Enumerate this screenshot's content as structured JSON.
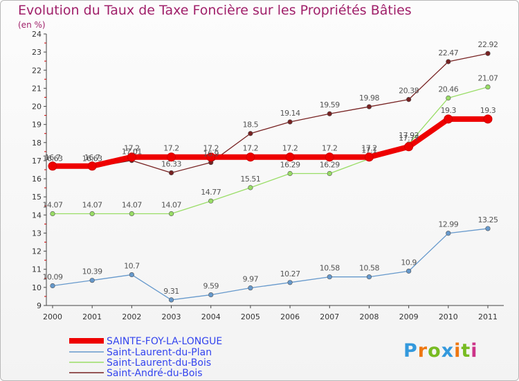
{
  "chart_data": {
    "type": "line",
    "title": "Evolution du Taux de Taxe Foncière sur les Propriétés Bâties",
    "subtitle": "(en %)",
    "xlabel": "",
    "ylabel": "(en %)",
    "ylim": [
      9,
      24
    ],
    "yticks": [
      9,
      10,
      11,
      12,
      13,
      14,
      15,
      16,
      17,
      18,
      19,
      20,
      21,
      22,
      23,
      24
    ],
    "categories": [
      "2000",
      "2001",
      "2002",
      "2003",
      "2004",
      "2005",
      "2006",
      "2007",
      "2008",
      "2009",
      "2010",
      "2011"
    ],
    "grid": false,
    "legend": "bottom-left",
    "series": [
      {
        "name": "SAINTE-FOY-LA-LONGUE",
        "color": "#ee0000",
        "values": [
          16.7,
          16.7,
          17.2,
          17.2,
          17.2,
          17.2,
          17.2,
          17.2,
          17.2,
          17.77,
          19.3,
          19.3
        ],
        "labels": [
          "16.7",
          "16.7",
          "17.2",
          "17.2",
          "17.2",
          "17.2",
          "17.2",
          "17.2",
          "17.2",
          "17.77",
          "19.3",
          "19.3"
        ]
      },
      {
        "name": "Saint-Laurent-du-Plan",
        "color": "#6699cc",
        "values": [
          10.09,
          10.39,
          10.7,
          9.31,
          9.59,
          9.97,
          10.27,
          10.58,
          10.58,
          10.9,
          12.99,
          13.25
        ],
        "labels": [
          "10.09",
          "10.39",
          "10.7",
          "9.31",
          "9.59",
          "9.97",
          "10.27",
          "10.58",
          "10.58",
          "10.9",
          "12.99",
          "13.25"
        ]
      },
      {
        "name": "Saint-Laurent-du-Bois",
        "color": "#99dd66",
        "values": [
          14.07,
          14.07,
          14.07,
          14.07,
          14.77,
          15.51,
          16.29,
          16.29,
          17.1,
          17.92,
          20.46,
          21.07
        ],
        "labels": [
          "14.07",
          "14.07",
          "14.07",
          "14.07",
          "14.77",
          "15.51",
          "16.29",
          "16.29",
          "17.1",
          "17.92",
          "20.46",
          "21.07"
        ]
      },
      {
        "name": "Saint-André-du-Bois",
        "color": "#772222",
        "values": [
          16.63,
          16.63,
          17.01,
          16.33,
          16.9,
          18.5,
          19.14,
          19.59,
          19.98,
          20.38,
          22.47,
          22.92
        ],
        "labels": [
          "16.63",
          "16.63",
          "17.01",
          "16.33",
          "16.9",
          "18.5",
          "19.14",
          "19.59",
          "19.98",
          "20.38",
          "22.47",
          "22.92"
        ]
      }
    ]
  },
  "logo": {
    "letters": [
      "P",
      "r",
      "o",
      "x",
      "i",
      "t",
      "i"
    ],
    "colors": [
      "#3399dd",
      "#ee7711",
      "#77bb22",
      "#3399dd",
      "#ee7711",
      "#77bb22",
      "#cc3388"
    ]
  }
}
